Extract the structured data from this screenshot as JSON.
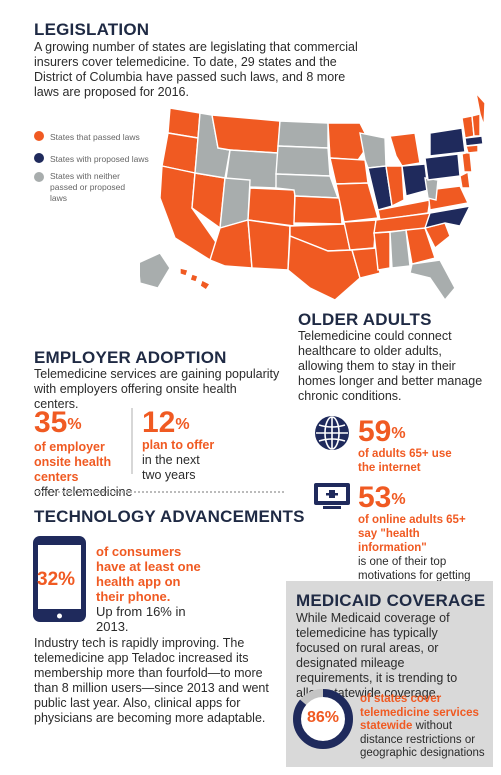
{
  "legislation": {
    "title": "LEGISLATION",
    "body": "A growing number of states are legislating that commercial insurers cover telemedicine. To date, 29 states and the District of Columbia have passed such laws, and 8 more laws are proposed for 2016.",
    "legend": [
      {
        "label": "States that passed laws",
        "color": "#f05a22"
      },
      {
        "label": "States with proposed laws",
        "color": "#1f2a5c"
      },
      {
        "label": "States with neither passed or proposed laws",
        "color": "#a8adad"
      }
    ]
  },
  "employer": {
    "title": "EMPLOYER ADOPTION",
    "body": "Telemedicine services are gaining popularity with employers offering onsite health centers.",
    "stat1_value": "35",
    "stat1_unit": "%",
    "stat1_bold": "of employer onsite health centers",
    "stat1_rest": "offer telemedicine",
    "stat2_value": "12",
    "stat2_unit": "%",
    "stat2_bold": "plan to offer",
    "stat2_rest": "in the next two years"
  },
  "older": {
    "title": "OLDER ADULTS",
    "body": "Telemedicine could connect healthcare to older adults, allowing them to stay in their homes longer and better manage chronic conditions.",
    "stat1_value": "59",
    "stat1_unit": "%",
    "stat1_bold": "of adults 65+ use the internet",
    "stat2_value": "53",
    "stat2_unit": "%",
    "stat2_bold": "of online adults 65+ say \"health information\"",
    "stat2_rest": "is one of their top motivations for getting online"
  },
  "tech": {
    "title": "TECHNOLOGY ADVANCEMENTS",
    "phone_value": "32%",
    "stat_bold": "of consumers have at least one health app on their phone.",
    "stat_rest": "Up from 16% in 2013.",
    "body": "Industry tech is rapidly improving. The telemedicine app Teladoc increased its membership more than fourfold—to more than 8 million users—since 2013 and went public last year. Also, clinical apps for physicians are becoming more adaptable."
  },
  "medicaid": {
    "title": "MEDICAID COVERAGE",
    "body": "While Medicaid coverage of telemedicine has typically focused on rural areas, or designated mileage requirements, it is trending to allow statewide coverage.",
    "ring_value": "86%",
    "ring_fraction": 0.86,
    "stat_bold": "of states cover telemedicine services statewide",
    "stat_rest": "without distance restrictions or geographic designations"
  },
  "colors": {
    "orange": "#f05a22",
    "navy": "#1f2a5c",
    "gray": "#a8adad",
    "panel": "#d9d9d9"
  }
}
